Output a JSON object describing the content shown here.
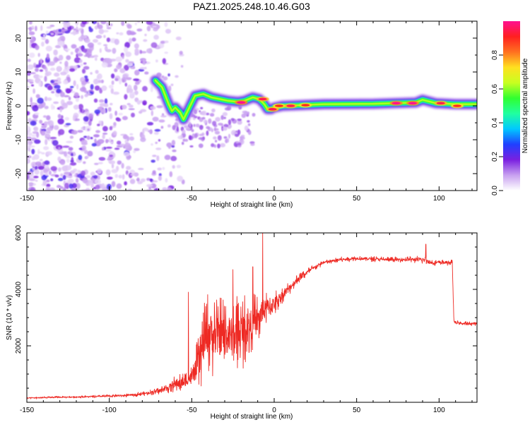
{
  "chart_data": [
    {
      "type": "heatmap",
      "title": "PAZ1.2025.248.10.46.G03",
      "xlabel": "Height of straight line (km)",
      "ylabel": "Frequency (Hz)",
      "xlim": [
        -150,
        123
      ],
      "ylim": [
        -25,
        25
      ],
      "x_ticks": [
        -150,
        -100,
        -50,
        0,
        50,
        100
      ],
      "y_ticks": [
        -20,
        -10,
        0,
        10,
        20
      ],
      "colorbar": {
        "label": "Normalized spectral amplitude",
        "range": [
          0,
          1
        ],
        "ticks": [
          0.0,
          0.2,
          0.4,
          0.6,
          0.8
        ],
        "colors": [
          "#ffffff",
          "#c8a0f0",
          "#7a20e0",
          "#2040ff",
          "#00c8ff",
          "#20ffa0",
          "#30ff30",
          "#c8ff20",
          "#ffe020",
          "#ff7020",
          "#ff2020",
          "#ff1090"
        ]
      },
      "ridge": [
        {
          "x": -72,
          "f": 7.5
        },
        {
          "x": -68,
          "f": 5.5
        },
        {
          "x": -66,
          "f": 3.0
        },
        {
          "x": -64,
          "f": 0.5
        },
        {
          "x": -62,
          "f": -1.5
        },
        {
          "x": -60,
          "f": -0.5
        },
        {
          "x": -57,
          "f": -2.0
        },
        {
          "x": -55,
          "f": -4.0
        },
        {
          "x": -52,
          "f": -1.0
        },
        {
          "x": -48,
          "f": 3.0
        },
        {
          "x": -43,
          "f": 3.5
        },
        {
          "x": -38,
          "f": 2.5
        },
        {
          "x": -33,
          "f": 2.0
        },
        {
          "x": -28,
          "f": 1.5
        },
        {
          "x": -22,
          "f": 1.2
        },
        {
          "x": -18,
          "f": 1.5
        },
        {
          "x": -13,
          "f": 2.5
        },
        {
          "x": -9,
          "f": 2.0
        },
        {
          "x": -6,
          "f": 0.5
        },
        {
          "x": -4,
          "f": -1.0
        },
        {
          "x": -2,
          "f": -1.0
        },
        {
          "x": 0,
          "f": -0.5
        },
        {
          "x": 5,
          "f": 0.0
        },
        {
          "x": 30,
          "f": 0.5
        },
        {
          "x": 60,
          "f": 0.6
        },
        {
          "x": 86,
          "f": 1.0
        },
        {
          "x": 90,
          "f": 1.8
        },
        {
          "x": 98,
          "f": 0.8
        },
        {
          "x": 110,
          "f": 0.5
        },
        {
          "x": 123,
          "f": 0.5
        }
      ],
      "hot_spots": [
        {
          "x": -20,
          "f": 1.0,
          "amp": 1.0
        },
        {
          "x": -7,
          "f": 2.0,
          "amp": 0.95
        },
        {
          "x": -1,
          "f": -1.0,
          "amp": 0.95
        },
        {
          "x": 3,
          "f": 0.0,
          "amp": 0.9
        },
        {
          "x": 10,
          "f": 0.0,
          "amp": 0.95
        },
        {
          "x": 19,
          "f": 0.2,
          "amp": 0.9
        },
        {
          "x": 74,
          "f": 0.8,
          "amp": 1.0
        },
        {
          "x": 84,
          "f": 0.8,
          "amp": 1.0
        },
        {
          "x": 101,
          "f": 0.8,
          "amp": 0.95
        },
        {
          "x": 111,
          "f": 0.0,
          "amp": 0.9
        }
      ],
      "noise_region": {
        "x_from": -150,
        "x_to": -55,
        "f_from": -25,
        "f_to": 25,
        "density": "high",
        "dominant_amplitude": "0.05-0.2"
      }
    },
    {
      "type": "line",
      "xlabel": "Height of straight line (km)",
      "ylabel": "SNR (10 * v/v)",
      "xlim": [
        -150,
        123
      ],
      "ylim": [
        0,
        6000
      ],
      "x_ticks": [
        -150,
        -100,
        -50,
        0,
        50,
        100
      ],
      "y_ticks": [
        2000,
        4000,
        6000
      ],
      "series": [
        {
          "name": "SNR",
          "color": "#ee2a24",
          "x": [
            -150,
            -130,
            -110,
            -90,
            -80,
            -70,
            -65,
            -60,
            -55,
            -50,
            -47,
            -45,
            -42,
            -40,
            -35,
            -30,
            -25,
            -20,
            -15,
            -10,
            -7,
            -5,
            0,
            5,
            10,
            15,
            20,
            25,
            30,
            35,
            40,
            50,
            60,
            70,
            80,
            90,
            95,
            100,
            105,
            108,
            109,
            112,
            118,
            123
          ],
          "y": [
            150,
            180,
            200,
            240,
            300,
            400,
            500,
            650,
            700,
            900,
            1200,
            1600,
            2200,
            2500,
            2300,
            2400,
            2300,
            2500,
            2700,
            2900,
            3200,
            3300,
            3500,
            3800,
            4100,
            4400,
            4600,
            4800,
            4950,
            5000,
            5050,
            5100,
            5080,
            5050,
            5060,
            5050,
            4950,
            4950,
            4950,
            4950,
            2850,
            2800,
            2780,
            2800
          ],
          "spread": [
            40,
            40,
            45,
            60,
            80,
            120,
            200,
            300,
            350,
            400,
            900,
            1200,
            1400,
            1500,
            1500,
            1500,
            1500,
            1400,
            1200,
            1000,
            900,
            700,
            500,
            300,
            250,
            200,
            150,
            120,
            100,
            100,
            100,
            100,
            100,
            100,
            100,
            150,
            120,
            100,
            100,
            100,
            80,
            80,
            80,
            80
          ],
          "spikes": [
            {
              "x": -7,
              "y": 6000
            },
            {
              "x": -25,
              "y": 4700
            },
            {
              "x": -13,
              "y": 4800
            },
            {
              "x": 92,
              "y": 5600
            },
            {
              "x": -52,
              "y": 3900
            }
          ]
        }
      ]
    }
  ]
}
